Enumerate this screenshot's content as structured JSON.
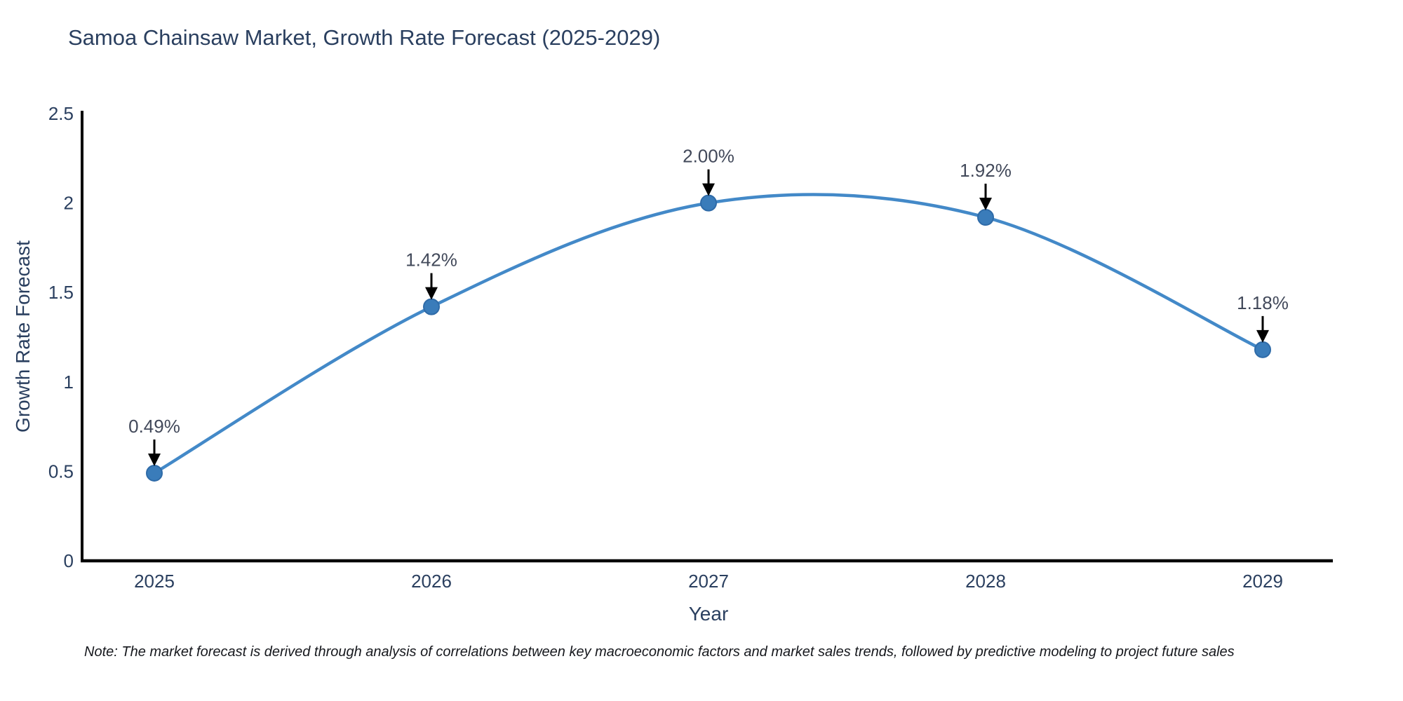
{
  "page": {
    "background_color": "#ffffff"
  },
  "chart_data": {
    "type": "line",
    "title": "Samoa Chainsaw Market, Growth Rate Forecast (2025-2029)",
    "xlabel": "Year",
    "ylabel": "Growth Rate Forecast",
    "categories": [
      "2025",
      "2026",
      "2027",
      "2028",
      "2029"
    ],
    "series": [
      {
        "name": "Growth Rate Forecast",
        "values": [
          0.49,
          1.42,
          2.0,
          1.92,
          1.18
        ],
        "point_labels": [
          "0.49%",
          "1.42%",
          "2.00%",
          "1.92%",
          "1.18%"
        ]
      }
    ],
    "ylim": [
      0,
      2.5
    ],
    "ytick_values": [
      0,
      0.5,
      1,
      1.5,
      2,
      2.5
    ],
    "ytick_labels": [
      "0",
      "0.5",
      "1",
      "1.5",
      "2",
      "2.5"
    ],
    "grid": false,
    "legend_position": "none",
    "line_shape": "spline",
    "marker_shape": "circle",
    "annotations_have_arrows": true
  },
  "note": {
    "text": "Note: The market forecast is derived through analysis of correlations between key macroeconomic factors and market sales trends, followed by predictive modeling to project future sales"
  },
  "colors": {
    "line": "#4389c8",
    "marker_fill": "#3a7cba",
    "marker_edge": "#2f6ba8",
    "axis": "#000000",
    "arrow": "#000000",
    "tick_text": "#2a3f5f",
    "title_text": "#2a3f5f",
    "annotation_text": "#42495a"
  }
}
